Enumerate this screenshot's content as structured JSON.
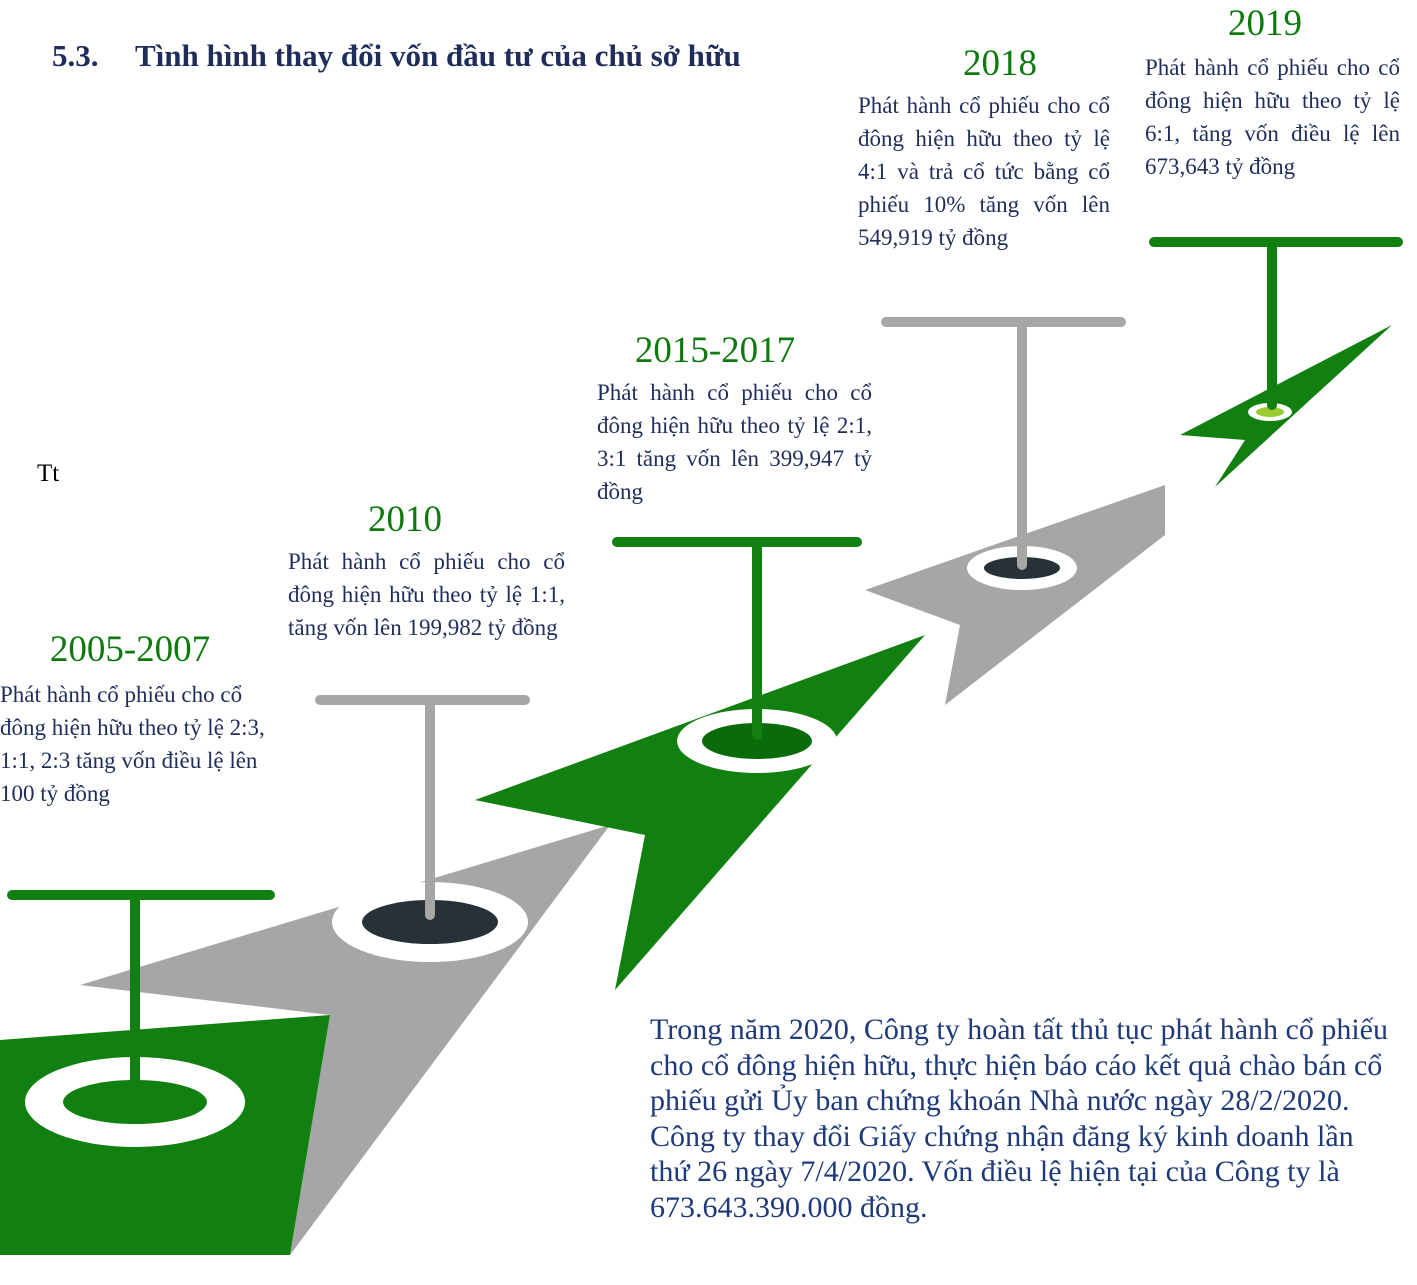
{
  "heading": {
    "number": "5.3.",
    "title": "Tình hình thay đổi vốn đầu tư của chủ sở hữu"
  },
  "stray_text": "Tt",
  "milestones": [
    {
      "year": "2005-2007",
      "text": "Phát hành cổ phiếu cho cổ đông hiện hữu theo tỷ lệ 2:3, 1:1, 2:3 tăng vốn điều lệ lên 100 tỷ đồng"
    },
    {
      "year": "2010",
      "text": "Phát hành cổ phiếu cho cổ đông hiện hữu theo tỷ lệ 1:1, tăng vốn lên 199,982 tỷ đồng"
    },
    {
      "year": "2015-2017",
      "text": "Phát hành cổ phiếu cho cổ đông hiện hữu theo tỷ lệ 2:1, 3:1 tăng vốn lên 399,947 tỷ đồng"
    },
    {
      "year": "2018",
      "text": "Phát hành cổ phiếu cho cổ đông hiện hữu theo tỷ lệ 4:1 và trả cổ tức bằng cổ phiếu 10% tăng vốn lên 549,919 tỷ đồng"
    },
    {
      "year": "2019",
      "text": "Phát hành cổ phiếu cho cổ đông hiện hữu theo tỷ lệ 6:1, tăng vốn điều lệ lên 673,643 tỷ đồng"
    }
  ],
  "paragraph": "Trong năm 2020, Công ty hoàn tất thủ tục phát hành cổ phiếu cho cổ đông hiện hữu, thực hiện báo cáo kết quả chào bán cổ phiếu gửi Ủy ban chứng khoán Nhà nước ngày 28/2/2020. Công ty thay đổi Giấy chứng nhận đăng ký kinh doanh lần thứ 26 ngày 7/4/2020. Vốn điều lệ hiện tại của Công ty là 673.643.390.000 đồng."
}
